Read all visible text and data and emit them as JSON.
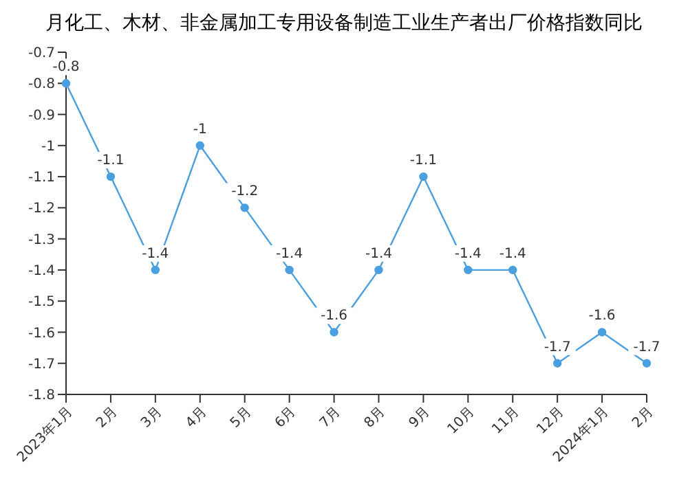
{
  "chart_data": {
    "type": "line",
    "title": "月化工、木材、非金属加工专用设备制造工业生产者出厂价格指数同比",
    "categories": [
      "2023年1月",
      "2月",
      "3月",
      "4月",
      "5月",
      "6月",
      "7月",
      "8月",
      "9月",
      "10月",
      "11月",
      "12月",
      "2024年1月",
      "2月"
    ],
    "series": [
      {
        "color": "#4a9fe0",
        "values": [
          -0.8,
          -1.1,
          -1.4,
          -1,
          -1.2,
          -1.4,
          -1.6,
          -1.4,
          -1.1,
          -1.4,
          -1.4,
          -1.7,
          -1.6,
          -1.7
        ]
      }
    ],
    "ylim": [
      -1.8,
      -0.7
    ],
    "yticks": [
      -1.8,
      -1.7,
      -1.6,
      -1.5,
      -1.4,
      -1.3,
      -1.2,
      -1.1,
      -1,
      -0.9,
      -0.8,
      -0.7
    ],
    "data_labels": true,
    "marker": "circle",
    "grid": false
  }
}
